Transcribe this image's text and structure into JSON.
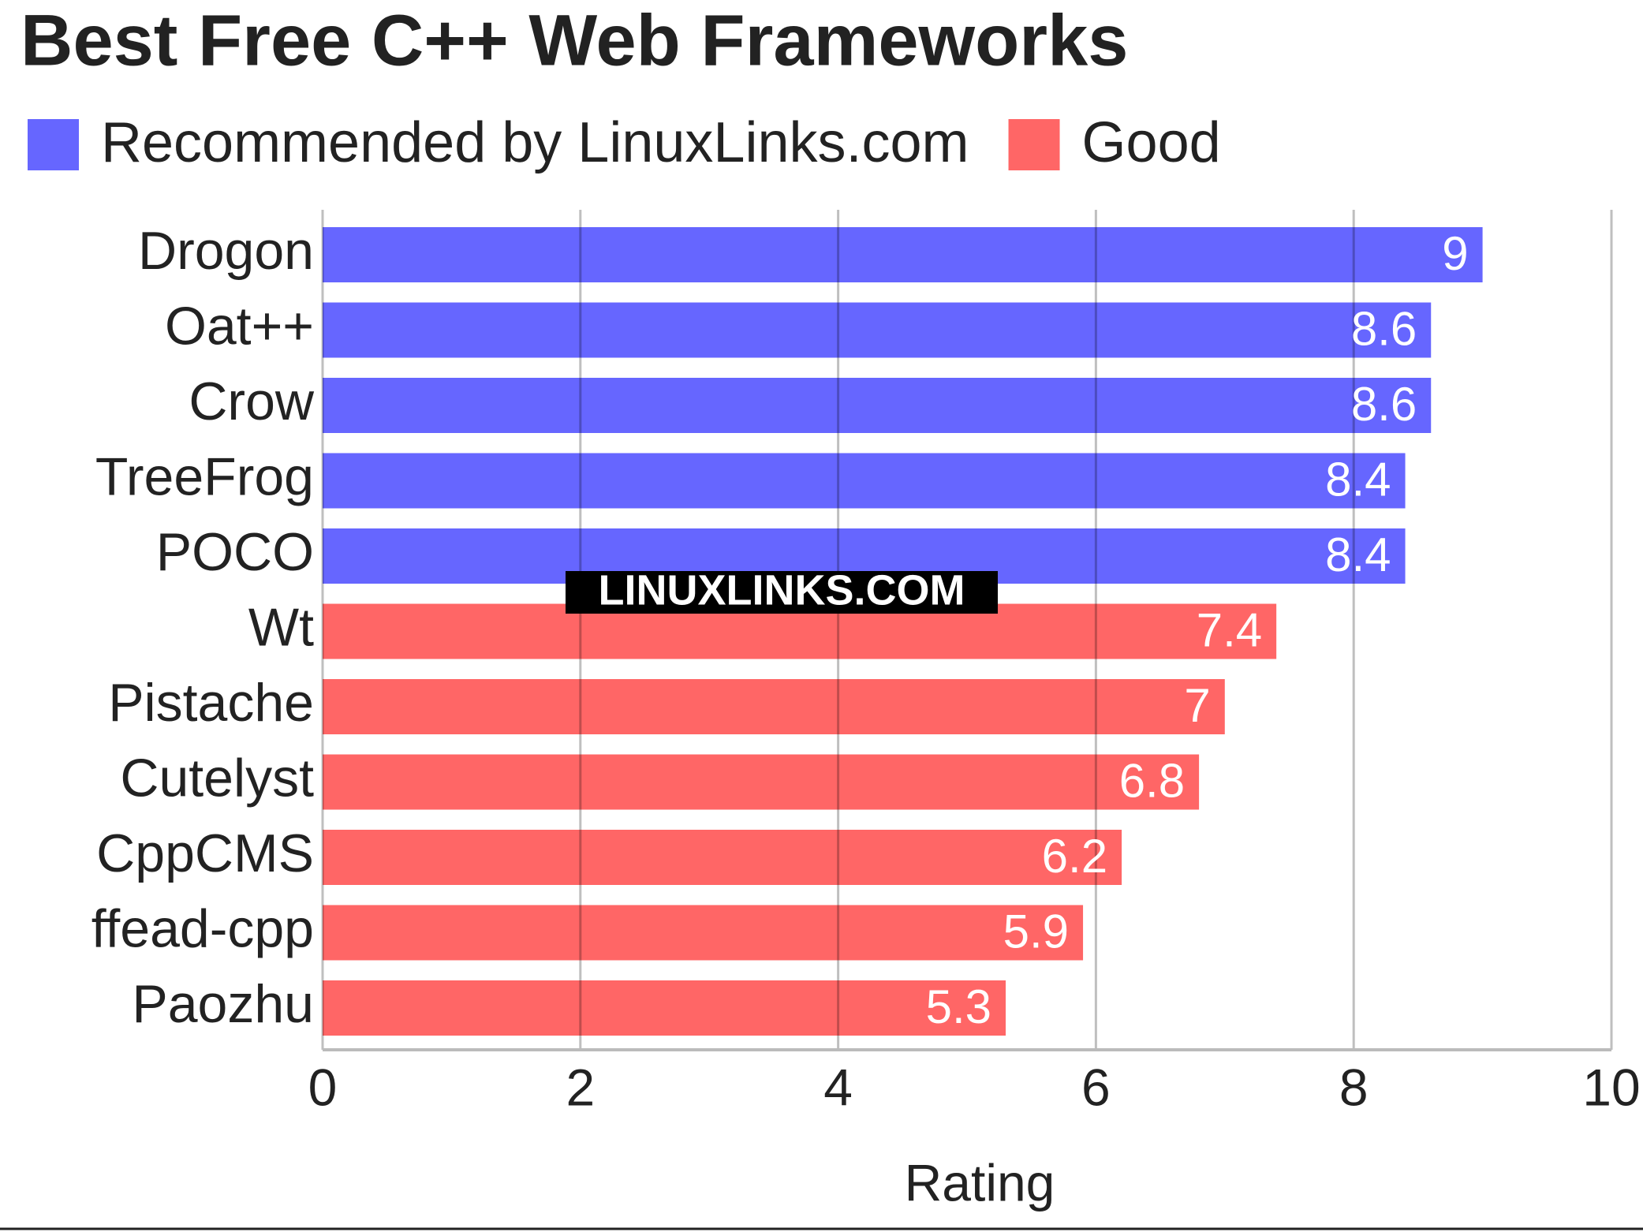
{
  "chart_data": {
    "type": "bar",
    "orientation": "horizontal",
    "title": "Best Free C++ Web Frameworks",
    "categories": [
      "Drogon",
      "Oat++",
      "Crow",
      "TreeFrog",
      "POCO",
      "Wt",
      "Pistache",
      "Cutelyst",
      "CppCMS",
      "ffead-cpp",
      "Paozhu"
    ],
    "series": [
      {
        "name": "Recommended by LinuxLinks.com",
        "color": "#6666ff",
        "values": [
          9,
          8.6,
          8.6,
          8.4,
          8.4,
          null,
          null,
          null,
          null,
          null,
          null
        ]
      },
      {
        "name": "Good",
        "color": "#ff6666",
        "values": [
          null,
          null,
          null,
          null,
          null,
          7.4,
          7,
          6.8,
          6.2,
          5.9,
          5.3
        ]
      }
    ],
    "xlabel": "Rating",
    "xlim": [
      0,
      10
    ],
    "xticks": [
      0,
      2,
      4,
      6,
      8,
      10
    ],
    "grid": true,
    "legend": "top-left",
    "annotation": "LINUXLINKS.COM"
  }
}
